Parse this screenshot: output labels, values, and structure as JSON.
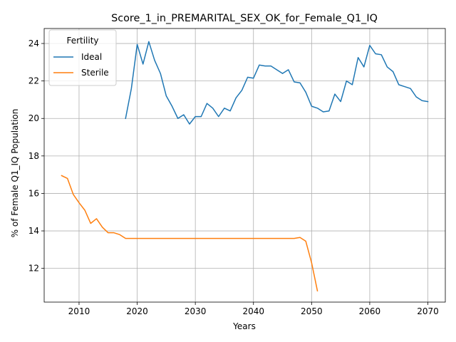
{
  "chart_data": {
    "type": "line",
    "title": "Score_1_in_PREMARITAL_SEX_OK_for_Female_Q1_IQ",
    "xlabel": "Years",
    "ylabel": "% of Female Q1_IQ Population",
    "xlim": [
      2004,
      2073
    ],
    "ylim": [
      10.2,
      24.8
    ],
    "xticks": [
      2010,
      2020,
      2030,
      2040,
      2050,
      2060,
      2070
    ],
    "yticks": [
      12,
      14,
      16,
      18,
      20,
      22,
      24
    ],
    "grid": true,
    "legend": {
      "title": "Fertility",
      "placement": "top-left"
    },
    "series": [
      {
        "name": "Ideal",
        "color": "#1f77b4",
        "x": [
          2018,
          2019,
          2020,
          2021,
          2022,
          2023,
          2024,
          2025,
          2026,
          2027,
          2028,
          2029,
          2030,
          2031,
          2032,
          2033,
          2034,
          2035,
          2036,
          2037,
          2038,
          2039,
          2040,
          2041,
          2042,
          2043,
          2044,
          2045,
          2046,
          2047,
          2048,
          2049,
          2050,
          2051,
          2052,
          2053,
          2054,
          2055,
          2056,
          2057,
          2058,
          2059,
          2060,
          2061,
          2062,
          2063,
          2064,
          2065,
          2066,
          2067,
          2068,
          2069,
          2070
        ],
        "y": [
          20.0,
          21.6,
          23.95,
          22.9,
          24.1,
          23.1,
          22.4,
          21.2,
          20.65,
          20.0,
          20.2,
          19.7,
          20.1,
          20.1,
          20.8,
          20.55,
          20.1,
          20.55,
          20.4,
          21.1,
          21.5,
          22.2,
          22.15,
          22.85,
          22.8,
          22.8,
          22.6,
          22.4,
          22.6,
          21.95,
          21.9,
          21.4,
          20.65,
          20.55,
          20.35,
          20.4,
          21.3,
          20.9,
          22.0,
          21.8,
          23.25,
          22.75,
          23.9,
          23.45,
          23.4,
          22.75,
          22.5,
          21.8,
          21.7,
          21.6,
          21.15,
          20.95,
          20.9
        ]
      },
      {
        "name": "Sterile",
        "color": "#ff7f0e",
        "x": [
          2007,
          2008,
          2009,
          2010,
          2011,
          2012,
          2013,
          2014,
          2015,
          2016,
          2017,
          2018,
          2019,
          2020,
          2021,
          2022,
          2023,
          2024,
          2025,
          2026,
          2027,
          2028,
          2029,
          2030,
          2031,
          2032,
          2033,
          2034,
          2035,
          2036,
          2037,
          2038,
          2039,
          2040,
          2041,
          2042,
          2043,
          2044,
          2045,
          2046,
          2047,
          2048,
          2049,
          2050,
          2051
        ],
        "y": [
          16.95,
          16.8,
          15.95,
          15.5,
          15.1,
          14.4,
          14.65,
          14.2,
          13.9,
          13.9,
          13.8,
          13.6,
          13.6,
          13.6,
          13.6,
          13.6,
          13.6,
          13.6,
          13.6,
          13.6,
          13.6,
          13.6,
          13.6,
          13.6,
          13.6,
          13.6,
          13.6,
          13.6,
          13.6,
          13.6,
          13.6,
          13.6,
          13.6,
          13.6,
          13.6,
          13.6,
          13.6,
          13.6,
          13.6,
          13.6,
          13.6,
          13.65,
          13.45,
          12.3,
          10.8
        ]
      }
    ]
  }
}
